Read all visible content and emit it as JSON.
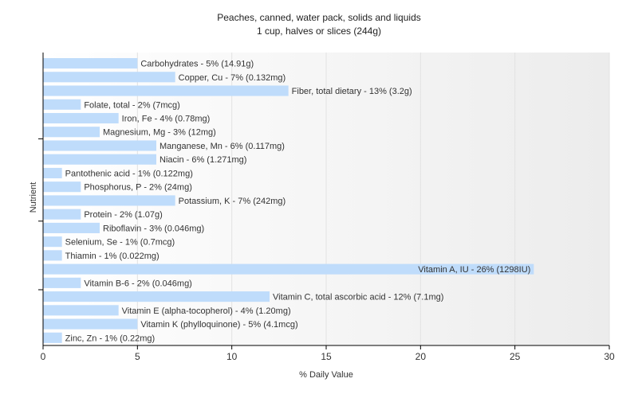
{
  "chart_data": {
    "type": "bar",
    "orientation": "horizontal",
    "title": "Peaches, canned, water pack, solids and liquids",
    "subtitle": "1 cup, halves or slices (244g)",
    "xlabel": "% Daily Value",
    "ylabel": "Nutrient",
    "xlim": [
      0,
      30
    ],
    "xticks": [
      0,
      5,
      10,
      15,
      20,
      25,
      30
    ],
    "grid": true,
    "bar_color": "#bfdcfb",
    "categories": [
      "Carbohydrates",
      "Copper, Cu",
      "Fiber, total dietary",
      "Folate, total",
      "Iron, Fe",
      "Magnesium, Mg",
      "Manganese, Mn",
      "Niacin",
      "Pantothenic acid",
      "Phosphorus, P",
      "Potassium, K",
      "Protein",
      "Riboflavin",
      "Selenium, Se",
      "Thiamin",
      "Vitamin A, IU",
      "Vitamin B-6",
      "Vitamin C, total ascorbic acid",
      "Vitamin E (alpha-tocopherol)",
      "Vitamin K (phylloquinone)",
      "Zinc, Zn"
    ],
    "values": [
      5,
      7,
      13,
      2,
      4,
      3,
      6,
      6,
      1,
      2,
      7,
      2,
      3,
      1,
      1,
      26,
      2,
      12,
      4,
      5,
      1
    ],
    "labels": [
      "Carbohydrates - 5% (14.91g)",
      "Copper, Cu - 7% (0.132mg)",
      "Fiber, total dietary - 13% (3.2g)",
      "Folate, total - 2% (7mcg)",
      "Iron, Fe - 4% (0.78mg)",
      "Magnesium, Mg - 3% (12mg)",
      "Manganese, Mn - 6% (0.117mg)",
      "Niacin - 6% (1.271mg)",
      "Pantothenic acid - 1% (0.122mg)",
      "Phosphorus, P - 2% (24mg)",
      "Potassium, K - 7% (242mg)",
      "Protein - 2% (1.07g)",
      "Riboflavin - 3% (0.046mg)",
      "Selenium, Se - 1% (0.7mcg)",
      "Thiamin - 1% (0.022mg)",
      "Vitamin A, IU - 26% (1298IU)",
      "Vitamin B-6 - 2% (0.046mg)",
      "Vitamin C, total ascorbic acid - 12% (7.1mg)",
      "Vitamin E (alpha-tocopherol) - 4% (1.20mg)",
      "Vitamin K (phylloquinone) - 5% (4.1mcg)",
      "Zinc, Zn - 1% (0.22mg)"
    ]
  }
}
